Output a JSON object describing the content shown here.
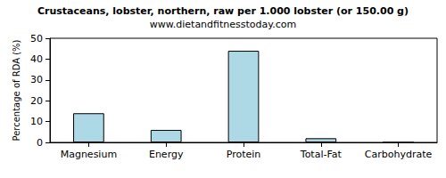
{
  "chart_data": {
    "type": "bar",
    "title": "Crustaceans, lobster, northern, raw per 1.000 lobster (or 150.00 g)",
    "subtitle": "www.dietandfitnesstoday.com",
    "y_label": "Percentage of RDA (%)",
    "categories": [
      "Magnesium",
      "Energy",
      "Protein",
      "Total-Fat",
      "Carbohydrate"
    ],
    "values": [
      14,
      6,
      44,
      2,
      0
    ],
    "color": "#add8e6",
    "ylim": [
      0,
      50
    ],
    "yticks": [
      0,
      10,
      20,
      30,
      40,
      50
    ],
    "grid": false
  }
}
